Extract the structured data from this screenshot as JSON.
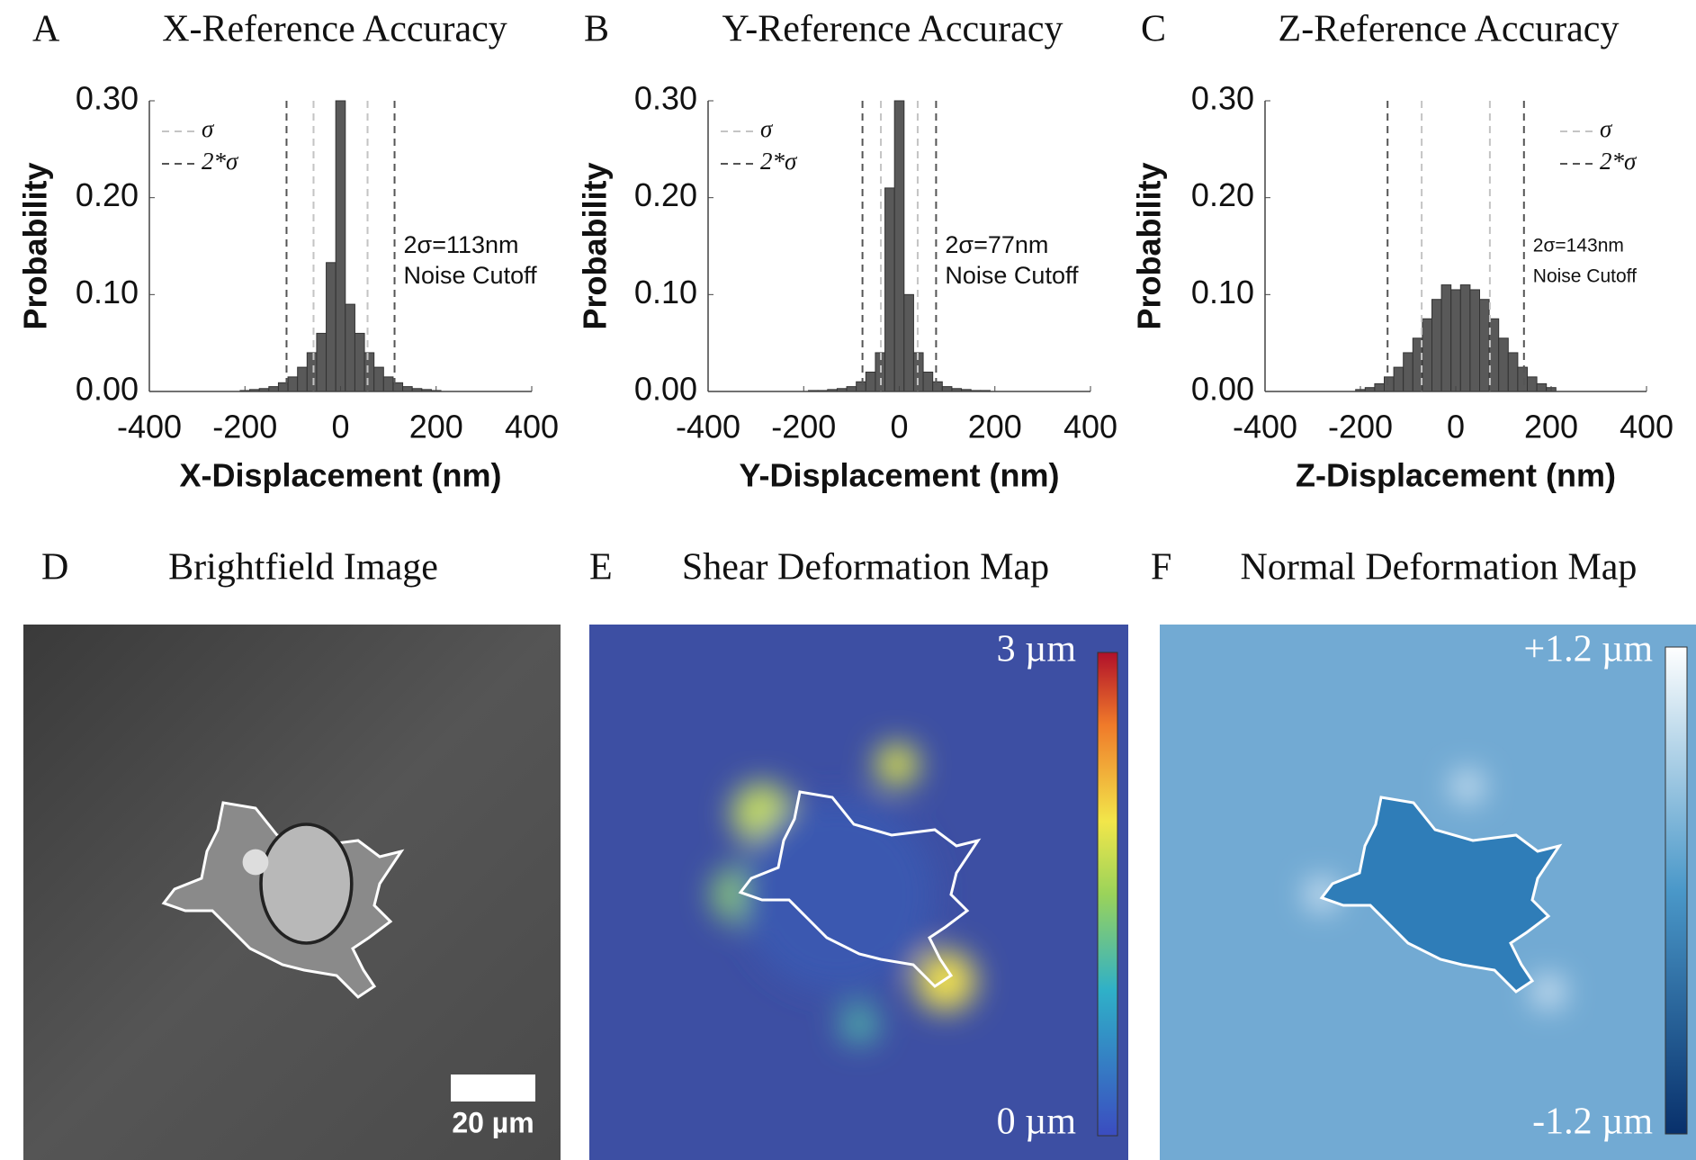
{
  "chart_data": [
    {
      "type": "histogram",
      "panel": "A",
      "title": "X-Reference Accuracy",
      "xlabel": "X-Displacement (nm)",
      "ylabel": "Probability",
      "bins": [
        -210,
        -190,
        -170,
        -150,
        -130,
        -110,
        -90,
        -70,
        -50,
        -30,
        -10,
        10,
        30,
        50,
        70,
        90,
        110,
        130,
        150,
        170,
        190,
        210
      ],
      "values": [
        0.001,
        0.002,
        0.003,
        0.005,
        0.009,
        0.015,
        0.025,
        0.04,
        0.06,
        0.133,
        0.3,
        0.09,
        0.06,
        0.04,
        0.025,
        0.015,
        0.009,
        0.005,
        0.003,
        0.002,
        0.001
      ],
      "color": "#595959",
      "xlim": [
        -400,
        400
      ],
      "xticks": [
        -400,
        -200,
        0,
        200,
        400
      ],
      "ylim": [
        0,
        0.3
      ],
      "yticks": [
        {
          "value": 0,
          "label": "0.00"
        },
        {
          "value": 0.1,
          "label": "0.10"
        },
        {
          "value": 0.2,
          "label": "0.20"
        },
        {
          "value": 0.3,
          "label": "0.30"
        }
      ],
      "reference_lines": [
        {
          "name": "σ",
          "color": "#c4c4c4",
          "values": [
            -56.5,
            56.5
          ]
        },
        {
          "name": "2*σ",
          "color": "#555555",
          "values": [
            -113,
            113
          ]
        }
      ],
      "legend": "upper left",
      "annotation": [
        "2σ=113nm",
        "Noise Cutoff"
      ]
    },
    {
      "type": "histogram",
      "panel": "B",
      "title": "Y-Reference Accuracy",
      "xlabel": "Y-Displacement (nm)",
      "ylabel": "Probability",
      "bins": [
        -210,
        -190,
        -170,
        -150,
        -130,
        -110,
        -90,
        -70,
        -50,
        -30,
        -10,
        10,
        30,
        50,
        70,
        90,
        110,
        130,
        150,
        170,
        190,
        210
      ],
      "values": [
        0,
        0.001,
        0.001,
        0.002,
        0.003,
        0.005,
        0.01,
        0.02,
        0.04,
        0.21,
        0.3,
        0.1,
        0.04,
        0.02,
        0.01,
        0.005,
        0.003,
        0.002,
        0.001,
        0.001,
        0
      ],
      "color": "#595959",
      "xlim": [
        -400,
        400
      ],
      "xticks": [
        -400,
        -200,
        0,
        200,
        400
      ],
      "ylim": [
        0,
        0.3
      ],
      "yticks": [
        {
          "value": 0,
          "label": "0.00"
        },
        {
          "value": 0.1,
          "label": "0.10"
        },
        {
          "value": 0.2,
          "label": "0.20"
        },
        {
          "value": 0.3,
          "label": "0.30"
        }
      ],
      "reference_lines": [
        {
          "name": "σ",
          "color": "#c4c4c4",
          "values": [
            -38.5,
            38.5
          ]
        },
        {
          "name": "2*σ",
          "color": "#555555",
          "values": [
            -77,
            77
          ]
        }
      ],
      "legend": "upper left",
      "annotation": [
        "2σ=77nm",
        "Noise Cutoff"
      ]
    },
    {
      "type": "histogram",
      "panel": "C",
      "title": "Z-Reference Accuracy",
      "xlabel": "Z-Displacement (nm)",
      "ylabel": "Probability",
      "bins": [
        -210,
        -190,
        -170,
        -150,
        -130,
        -110,
        -90,
        -70,
        -50,
        -30,
        -10,
        10,
        30,
        50,
        70,
        90,
        110,
        130,
        150,
        170,
        190,
        210
      ],
      "values": [
        0.002,
        0.004,
        0.008,
        0.015,
        0.025,
        0.04,
        0.055,
        0.075,
        0.095,
        0.11,
        0.105,
        0.11,
        0.105,
        0.095,
        0.075,
        0.055,
        0.04,
        0.025,
        0.015,
        0.008,
        0.004
      ],
      "color": "#595959",
      "xlim": [
        -400,
        400
      ],
      "xticks": [
        -400,
        -200,
        0,
        200,
        400
      ],
      "ylim": [
        0,
        0.3
      ],
      "yticks": [
        {
          "value": 0,
          "label": "0.00"
        },
        {
          "value": 0.1,
          "label": "0.10"
        },
        {
          "value": 0.2,
          "label": "0.20"
        },
        {
          "value": 0.3,
          "label": "0.30"
        }
      ],
      "reference_lines": [
        {
          "name": "σ",
          "color": "#c4c4c4",
          "values": [
            -71.5,
            71.5
          ]
        },
        {
          "name": "2*σ",
          "color": "#555555",
          "values": [
            -143,
            143
          ]
        }
      ],
      "legend": "upper right",
      "annotation": [
        "2σ=143nm",
        "Noise Cutoff"
      ]
    }
  ],
  "images": [
    {
      "letter": "D",
      "title": "Brightfield Image",
      "scale_bar": "20 µm"
    },
    {
      "letter": "E",
      "title": "Shear Deformation Map",
      "colorbar_max": "3 µm",
      "colorbar_min": "0 µm"
    },
    {
      "letter": "F",
      "title": "Normal Deformation Map",
      "colorbar_max": "+1.2 µm",
      "colorbar_min": "-1.2 µm"
    }
  ]
}
